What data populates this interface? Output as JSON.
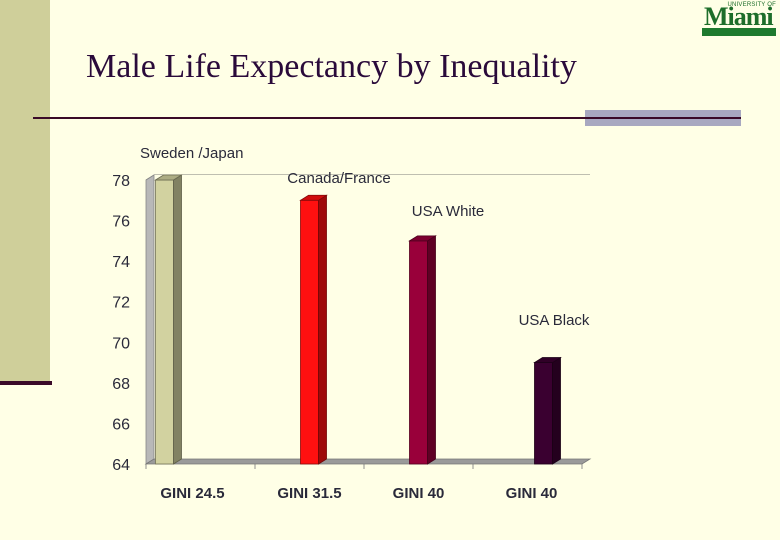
{
  "page": {
    "title": "Male Life Expectancy by Inequality"
  },
  "logo": {
    "top_text": "UNIVERSITY OF",
    "word": "Miami",
    "colors": {
      "green": "#1e6e2a"
    }
  },
  "chart_data": {
    "type": "bar",
    "title": "",
    "xlabel": "",
    "ylabel": "",
    "categories": [
      "GINI 24.5",
      "GINI 31.5",
      "GINI  40",
      "GINI 40"
    ],
    "values": [
      78,
      77,
      75,
      69
    ],
    "bar_labels": [
      "Sweden /Japan",
      "Canada/France",
      "USA White",
      "USA Black"
    ],
    "colors": [
      "#d2d2a0",
      "#ff1010",
      "#99003a",
      "#3a0030"
    ],
    "ylim": [
      64,
      78
    ],
    "yticks": [
      64,
      66,
      68,
      70,
      72,
      74,
      76,
      78
    ],
    "grid": true,
    "legend": "none"
  }
}
